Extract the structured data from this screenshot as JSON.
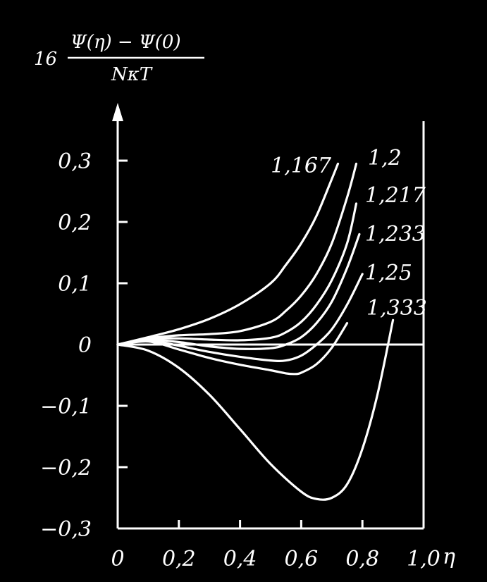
{
  "chart_data": {
    "type": "line",
    "title": "",
    "ylabel": {
      "prefix": "16",
      "numerator": "Ψ(η) − Ψ(0)",
      "denominator": "NκT"
    },
    "xlabel": "η",
    "xlim": [
      0,
      1.0
    ],
    "ylim": [
      -0.3,
      0.35
    ],
    "x_ticks": [
      {
        "v": 0,
        "label": "0"
      },
      {
        "v": 0.2,
        "label": "0,2"
      },
      {
        "v": 0.4,
        "label": "0,4"
      },
      {
        "v": 0.6,
        "label": "0,6"
      },
      {
        "v": 0.8,
        "label": "0,8"
      },
      {
        "v": 1.0,
        "label": "1,0"
      }
    ],
    "y_ticks": [
      {
        "v": 0.3,
        "label": "0,3"
      },
      {
        "v": 0.2,
        "label": "0,2"
      },
      {
        "v": 0.1,
        "label": "0,1"
      },
      {
        "v": 0,
        "label": "0"
      },
      {
        "v": -0.1,
        "label": "−0,1"
      },
      {
        "v": -0.2,
        "label": "−0,2"
      },
      {
        "v": -0.3,
        "label": "−0,3"
      }
    ],
    "grid": false,
    "series": [
      {
        "name": "1,167",
        "x": [
          0,
          0.1,
          0.2,
          0.3,
          0.4,
          0.5,
          0.55,
          0.6,
          0.65,
          0.7,
          0.72
        ],
        "y": [
          0,
          0.012,
          0.025,
          0.042,
          0.066,
          0.1,
          0.13,
          0.165,
          0.21,
          0.27,
          0.295
        ]
      },
      {
        "name": "1,2",
        "x": [
          0,
          0.1,
          0.2,
          0.3,
          0.4,
          0.5,
          0.55,
          0.6,
          0.65,
          0.7,
          0.75,
          0.78
        ],
        "y": [
          0,
          0.01,
          0.015,
          0.017,
          0.022,
          0.037,
          0.055,
          0.08,
          0.115,
          0.165,
          0.24,
          0.295
        ]
      },
      {
        "name": "1,217",
        "x": [
          0,
          0.1,
          0.2,
          0.3,
          0.4,
          0.5,
          0.55,
          0.6,
          0.65,
          0.7,
          0.75,
          0.78
        ],
        "y": [
          0,
          0.009,
          0.01,
          0.008,
          0.007,
          0.011,
          0.02,
          0.037,
          0.065,
          0.105,
          0.165,
          0.23
        ]
      },
      {
        "name": "1,233",
        "x": [
          0,
          0.1,
          0.2,
          0.3,
          0.4,
          0.5,
          0.55,
          0.6,
          0.65,
          0.7,
          0.75,
          0.79
        ],
        "y": [
          0,
          0.008,
          0.004,
          -0.003,
          -0.007,
          -0.006,
          0.0,
          0.012,
          0.035,
          0.07,
          0.125,
          0.18
        ]
      },
      {
        "name": "1,25",
        "x": [
          0,
          0.1,
          0.2,
          0.3,
          0.4,
          0.5,
          0.55,
          0.6,
          0.65,
          0.7,
          0.75,
          0.8
        ],
        "y": [
          0,
          0.007,
          -0.002,
          -0.012,
          -0.02,
          -0.026,
          -0.026,
          -0.018,
          0.0,
          0.025,
          0.065,
          0.115
        ]
      },
      {
        "name": "1,333",
        "x": [
          0,
          0.1,
          0.2,
          0.3,
          0.4,
          0.5,
          0.6,
          0.65,
          0.7,
          0.75,
          0.8,
          0.85,
          0.9
        ],
        "y": [
          0,
          -0.01,
          -0.038,
          -0.082,
          -0.138,
          -0.195,
          -0.24,
          -0.252,
          -0.25,
          -0.228,
          -0.17,
          -0.08,
          0.04
        ]
      }
    ],
    "extra_curves": [
      {
        "x": [
          0,
          0.1,
          0.2,
          0.3,
          0.4,
          0.5,
          0.55,
          0.58,
          0.6,
          0.65,
          0.7,
          0.75
        ],
        "y": [
          0,
          0.005,
          -0.008,
          -0.022,
          -0.033,
          -0.042,
          -0.047,
          -0.048,
          -0.046,
          -0.032,
          -0.005,
          0.035
        ]
      }
    ],
    "series_labels_position": "at curve ends, top-right"
  }
}
